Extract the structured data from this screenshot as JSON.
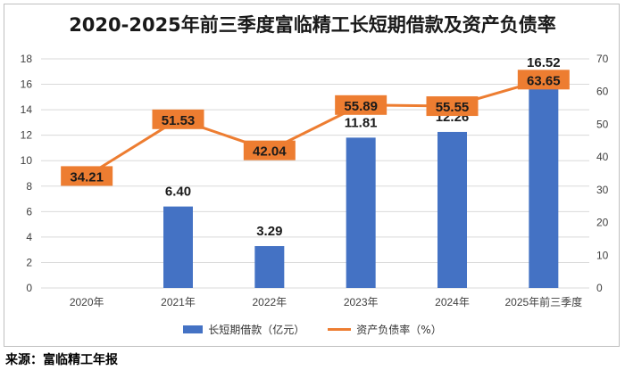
{
  "title": "2020-2025年前三季度富临精工长短期借款及资产负债率",
  "source": "来源：富临精工年报",
  "chart_data": {
    "type": "bar",
    "categories": [
      "2020年",
      "2021年",
      "2022年",
      "2023年",
      "2024年",
      "2025年前三季度"
    ],
    "series": [
      {
        "name": "长短期借款（亿元）",
        "type": "bar",
        "axis": "left",
        "values": [
          null,
          6.4,
          3.29,
          11.81,
          12.26,
          16.52
        ],
        "labels": [
          "",
          "6.40",
          "3.29",
          "11.81",
          "12.26",
          "16.52"
        ],
        "color": "#4472c4"
      },
      {
        "name": "资产负债率（%）",
        "type": "line",
        "axis": "right",
        "values": [
          34.21,
          51.53,
          42.04,
          55.89,
          55.55,
          63.65
        ],
        "labels": [
          "34.21",
          "51.53",
          "42.04",
          "55.89",
          "55.55",
          "63.65"
        ],
        "color": "#ed7d31"
      }
    ],
    "y_left": {
      "min": 0,
      "max": 18,
      "step": 2,
      "ticks": [
        "0",
        "2",
        "4",
        "6",
        "8",
        "10",
        "12",
        "14",
        "16",
        "18"
      ]
    },
    "y_right": {
      "min": 0,
      "max": 70,
      "step": 10,
      "ticks": [
        "0",
        "10",
        "20",
        "30",
        "40",
        "50",
        "60",
        "70"
      ]
    },
    "grid": true,
    "legend_position": "bottom"
  }
}
